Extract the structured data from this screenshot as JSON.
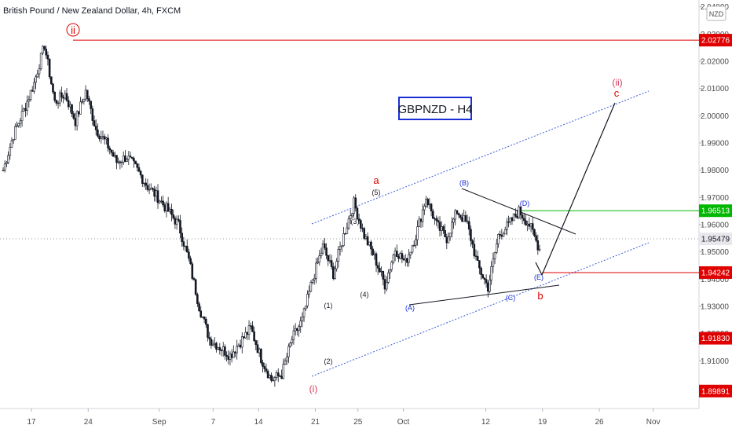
{
  "header": {
    "symbol_line": "British Pound / New Zealand Dollar, 4h, FXCM",
    "currency_badge": "NZD"
  },
  "chart_data": {
    "type": "candlestick",
    "title": "GBPNZD - H4",
    "xaxis_labels": [
      "17",
      "24",
      "Sep",
      "7",
      "14",
      "21",
      "25",
      "Oct",
      "12",
      "19",
      "26",
      "Nov"
    ],
    "yaxis_labels": [
      "1.91000",
      "1.92000",
      "1.93000",
      "1.94000",
      "1.95000",
      "1.96000",
      "1.97000",
      "1.98000",
      "1.99000",
      "2.00000",
      "2.01000",
      "2.02000",
      "2.03000",
      "2.04000"
    ],
    "ylim": [
      1.8925,
      2.0425
    ],
    "price_close_approx": [
      1.98,
      1.993,
      2.002,
      2.012,
      2.026,
      2.005,
      2.008,
      1.998,
      2.009,
      1.995,
      1.99,
      1.983,
      1.985,
      1.98,
      1.974,
      1.97,
      1.965,
      1.96,
      1.947,
      1.93,
      1.918,
      1.915,
      1.912,
      1.917,
      1.922,
      1.911,
      1.903,
      1.905,
      1.918,
      1.925,
      1.94,
      1.952,
      1.942,
      1.956,
      1.968,
      1.956,
      1.948,
      1.938,
      1.951,
      1.946,
      1.956,
      1.97,
      1.96,
      1.955,
      1.965,
      1.96,
      1.945,
      1.937,
      1.956,
      1.96,
      1.965,
      1.96,
      1.951
    ],
    "price_levels": [
      {
        "label": "2.02776",
        "value": 2.02776,
        "color": "#e00000"
      },
      {
        "label": "1.96513",
        "value": 1.96513,
        "color": "#00b800"
      },
      {
        "label": "1.95479",
        "value": 1.95479,
        "color": "#ffffff"
      },
      {
        "label": "1.94242",
        "value": 1.94242,
        "color": "#e00000"
      },
      {
        "label": "1.91830",
        "value": 1.9183,
        "color": "#e00000"
      },
      {
        "label": "1.89891",
        "value": 1.89891,
        "color": "#e00000"
      }
    ],
    "wave_labels": {
      "ii_circled": "ii",
      "i_paren": "(i)",
      "ii_paren": "(ii)",
      "minor_1": "(1)",
      "minor_2": "(2)",
      "minor_3": "(3)",
      "minor_4": "(4)",
      "minor_5": "(5)",
      "tri_A": "(A)",
      "tri_B": "(B)",
      "tri_C": "(C)",
      "tri_D": "(D)",
      "tri_E": "(E)",
      "a": "a",
      "b": "b",
      "c": "c"
    },
    "grid": false,
    "colors": {
      "candle": "#131722",
      "channel": "#3b5bdb",
      "triangle": "#131722",
      "label_box_border": "#1b2fd6",
      "accent_red": "#e00000",
      "accent_green": "#00b800"
    }
  }
}
